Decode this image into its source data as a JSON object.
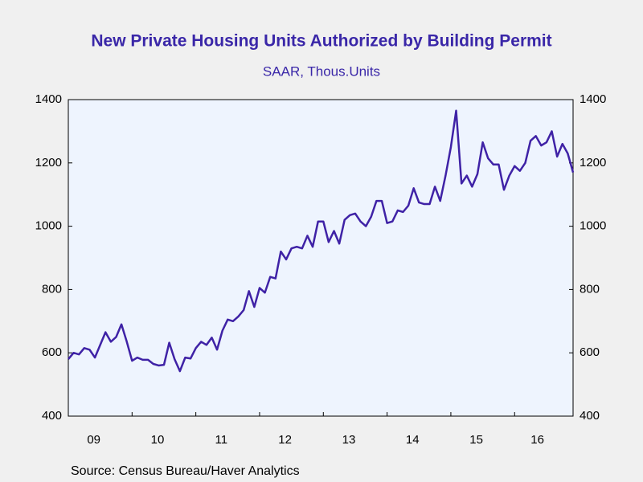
{
  "chart_data": {
    "type": "line",
    "title": "New Private Housing Units Authorized by Building Permit",
    "subtitle": "SAAR, Thous.Units",
    "source": "Source:  Census Bureau/Haver Analytics",
    "x": [
      2009.0,
      2009.083,
      2009.167,
      2009.25,
      2009.333,
      2009.417,
      2009.5,
      2009.583,
      2009.667,
      2009.75,
      2009.833,
      2009.917,
      2010.0,
      2010.083,
      2010.167,
      2010.25,
      2010.333,
      2010.417,
      2010.5,
      2010.583,
      2010.667,
      2010.75,
      2010.833,
      2010.917,
      2011.0,
      2011.083,
      2011.167,
      2011.25,
      2011.333,
      2011.417,
      2011.5,
      2011.583,
      2011.667,
      2011.75,
      2011.833,
      2011.917,
      2012.0,
      2012.083,
      2012.167,
      2012.25,
      2012.333,
      2012.417,
      2012.5,
      2012.583,
      2012.667,
      2012.75,
      2012.833,
      2012.917,
      2013.0,
      2013.083,
      2013.167,
      2013.25,
      2013.333,
      2013.417,
      2013.5,
      2013.583,
      2013.667,
      2013.75,
      2013.833,
      2013.917,
      2014.0,
      2014.083,
      2014.167,
      2014.25,
      2014.333,
      2014.417,
      2014.5,
      2014.583,
      2014.667,
      2014.75,
      2014.833,
      2014.917,
      2015.0,
      2015.083,
      2015.167,
      2015.25,
      2015.333,
      2015.417,
      2015.5,
      2015.583,
      2015.667,
      2015.75,
      2015.833,
      2015.917,
      2016.0,
      2016.083,
      2016.167,
      2016.25,
      2016.333,
      2016.417,
      2016.5,
      2016.583,
      2016.667,
      2016.75,
      2016.833,
      2016.917
    ],
    "series": [
      {
        "color": "#3f22a6",
        "values": [
          580,
          600,
          595,
          615,
          610,
          585,
          625,
          665,
          635,
          650,
          690,
          635,
          575,
          585,
          578,
          578,
          565,
          560,
          562,
          632,
          580,
          542,
          585,
          582,
          615,
          635,
          625,
          648,
          610,
          670,
          705,
          700,
          715,
          735,
          795,
          745,
          805,
          790,
          840,
          835,
          920,
          895,
          930,
          935,
          930,
          970,
          935,
          1015,
          1015,
          950,
          985,
          945,
          1020,
          1035,
          1040,
          1015,
          1000,
          1030,
          1080,
          1080,
          1010,
          1015,
          1050,
          1045,
          1065,
          1120,
          1075,
          1070,
          1070,
          1125,
          1080,
          1160,
          1250,
          1365,
          1135,
          1160,
          1125,
          1165,
          1265,
          1215,
          1195,
          1195,
          1115,
          1160,
          1190,
          1175,
          1200,
          1270,
          1285,
          1255,
          1265,
          1300,
          1220,
          1260,
          1230,
          1170
        ]
      }
    ],
    "xlim": [
      2009.0,
      2016.917
    ],
    "xticks": [
      {
        "value": 2009.5,
        "label": "09"
      },
      {
        "value": 2010.5,
        "label": "10"
      },
      {
        "value": 2011.5,
        "label": "11"
      },
      {
        "value": 2012.5,
        "label": "12"
      },
      {
        "value": 2013.5,
        "label": "13"
      },
      {
        "value": 2014.5,
        "label": "14"
      },
      {
        "value": 2015.5,
        "label": "15"
      },
      {
        "value": 2016.5,
        "label": "16"
      }
    ],
    "ylim": [
      400,
      1400
    ],
    "yticks": [
      400,
      600,
      800,
      1000,
      1200,
      1400
    ]
  }
}
